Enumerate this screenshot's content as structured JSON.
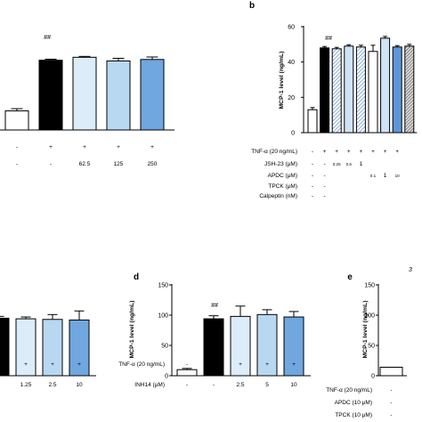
{
  "chart_data": [
    {
      "panel": "a",
      "type": "bar",
      "values": [
        13,
        47.5,
        49.5,
        47,
        48
      ],
      "errors": [
        1.5,
        0.7,
        0.6,
        1.8,
        1.7
      ],
      "ylim": [
        0,
        60
      ],
      "colors": [
        "#ffffff",
        "#000000",
        "#dcecf8",
        "#b8d8f2",
        "#6fa7de"
      ],
      "annotations": [
        "##"
      ],
      "rows": [
        {
          "label": "",
          "values": [
            "-",
            "+",
            "+",
            "+",
            "+"
          ]
        },
        {
          "label": "",
          "values": [
            "-",
            "-",
            "62.5",
            "125",
            "250"
          ]
        }
      ]
    },
    {
      "panel": "b",
      "type": "bar",
      "ylabel": "MCP-1 level (ng/mL)",
      "yticks": [
        0,
        20,
        40,
        60
      ],
      "ylim": [
        0,
        60
      ],
      "values": [
        13,
        48,
        47.5,
        49,
        48.5,
        46,
        53.5,
        48.5,
        49
      ],
      "errors": [
        1.2,
        0.8,
        0.8,
        0.8,
        1.0,
        3.5,
        1.0,
        0.8,
        1.0
      ],
      "colors": [
        "#ffffff",
        "#000000",
        "#7f9fd4",
        "#cfe3f6",
        "#cfe3f6",
        "#ffffff",
        "#cfe3f6",
        "#5f96d8",
        "#7a7a7a"
      ],
      "annotations": [
        "##"
      ],
      "rows": [
        {
          "label": "TNF-α (20 ng/mL)",
          "values": [
            "-",
            "+",
            "+",
            "+",
            "+",
            "+",
            "+",
            "+",
            ""
          ]
        },
        {
          "label": "JSH-23 (μM)",
          "values": [
            "-",
            "-",
            "0.25",
            "0.5",
            "1",
            "",
            "",
            "",
            ""
          ]
        },
        {
          "label": "APDC (μM)",
          "values": [
            "-",
            "-",
            "",
            "",
            "",
            "0.1",
            "1",
            "10",
            ""
          ]
        },
        {
          "label": "TPCK (μM)",
          "values": [
            "-",
            "-",
            "",
            "",
            "",
            "",
            "",
            "",
            ""
          ]
        },
        {
          "label": "Calpeptin (nM)",
          "values": [
            "-",
            "-",
            "",
            "",
            "",
            "",
            "",
            "",
            ""
          ]
        }
      ]
    },
    {
      "panel": "c",
      "type": "bar",
      "values": [
        95,
        94,
        93,
        92
      ],
      "errors": [
        3,
        3,
        8,
        15
      ],
      "ylim": [
        0,
        150
      ],
      "colors": [
        "#000000",
        "#dcecf8",
        "#b8d8f2",
        "#6fa7de"
      ],
      "rows": [
        {
          "label": "",
          "values": [
            "+",
            "+",
            "+",
            "+"
          ]
        },
        {
          "label": "",
          "values": [
            "-",
            "1.25",
            "2.5",
            "10"
          ]
        }
      ]
    },
    {
      "panel": "d",
      "type": "bar",
      "ylabel": "MCP-1 level (ng/mL)",
      "yticks": [
        0,
        50,
        100,
        150
      ],
      "ylim": [
        0,
        150
      ],
      "values": [
        10,
        94,
        98,
        101,
        97
      ],
      "errors": [
        2,
        5,
        17,
        8,
        9
      ],
      "colors": [
        "#ffffff",
        "#000000",
        "#dcecf8",
        "#b8d8f2",
        "#6fa7de"
      ],
      "annotations": [
        "##"
      ],
      "rows": [
        {
          "label": "TNF-α (20 ng/mL)",
          "values": [
            "-",
            "+",
            "+",
            "+",
            "+"
          ]
        },
        {
          "label": "INH14 (μM)",
          "values": [
            "-",
            "-",
            "2.5",
            "5",
            "10"
          ]
        }
      ]
    },
    {
      "panel": "e",
      "type": "bar",
      "ylabel": "MCP-1 level (ng/mL)",
      "yticks": [
        0,
        50,
        100,
        150
      ],
      "ylim": [
        0,
        150
      ],
      "values": [
        14
      ],
      "colors": [
        "#ffffff"
      ],
      "annotations": [
        "3"
      ],
      "rows": [
        {
          "label": "TNF-α (20 ng/mL)",
          "values": [
            "-"
          ]
        },
        {
          "label": "APDC (10  μM)",
          "values": [
            "-"
          ]
        },
        {
          "label": "TPCK (10  μM)",
          "values": [
            "-"
          ]
        }
      ]
    }
  ]
}
